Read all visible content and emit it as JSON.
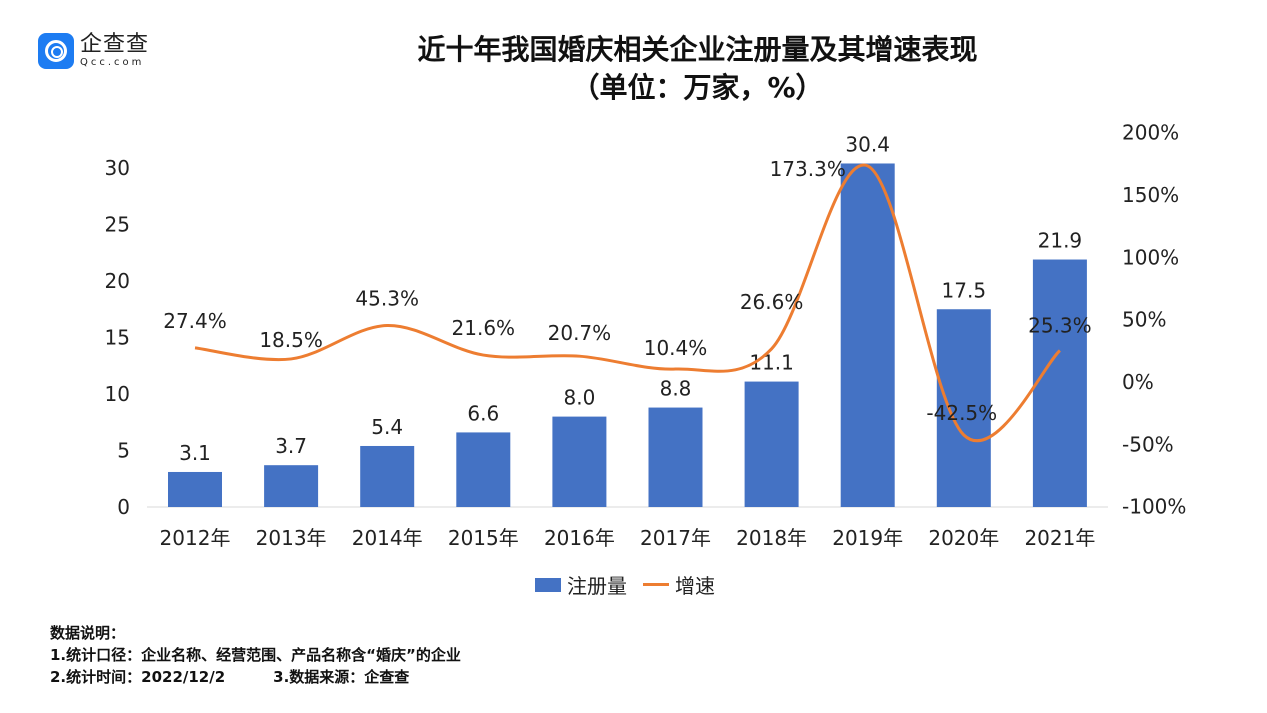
{
  "logo": {
    "cn": "企查查",
    "en": "Qcc.com"
  },
  "title": {
    "line1": "近十年我国婚庆相关企业注册量及其增速表现",
    "line2": "（单位：万家，%）"
  },
  "chart_data": {
    "type": "bar+line",
    "categories": [
      "2012年",
      "2013年",
      "2014年",
      "2015年",
      "2016年",
      "2017年",
      "2018年",
      "2019年",
      "2020年",
      "2021年"
    ],
    "series": [
      {
        "name": "注册量",
        "type": "bar",
        "axis": "left",
        "color": "#4472c4",
        "values": [
          3.1,
          3.7,
          5.4,
          6.6,
          8.0,
          8.8,
          11.1,
          30.4,
          17.5,
          21.9
        ],
        "labels": [
          "3.1",
          "3.7",
          "5.4",
          "6.6",
          "8.0",
          "8.8",
          "11.1",
          "30.4",
          "17.5",
          "21.9"
        ]
      },
      {
        "name": "增速",
        "type": "line",
        "axis": "right",
        "color": "#ed7d31",
        "smooth": true,
        "values": [
          27.4,
          18.5,
          45.3,
          21.6,
          20.7,
          10.4,
          26.6,
          173.3,
          -42.5,
          25.3
        ],
        "labels": [
          "27.4%",
          "18.5%",
          "45.3%",
          "21.6%",
          "20.7%",
          "10.4%",
          "26.6%",
          "173.3%",
          "-42.5%",
          "25.3%"
        ]
      }
    ],
    "left_axis": {
      "ticks": [
        "0",
        "5",
        "10",
        "15",
        "20",
        "25",
        "30"
      ],
      "range": [
        0,
        30
      ]
    },
    "right_axis": {
      "ticks": [
        "-100%",
        "-50%",
        "0%",
        "50%",
        "100%",
        "150%",
        "200%"
      ],
      "range": [
        -100,
        200
      ]
    },
    "grid": false,
    "legend": "bottom"
  },
  "notes": {
    "heading": "数据说明：",
    "line1": "1.统计口径：企业名称、经营范围、产品名称含“婚庆”的企业",
    "line2a": "2.统计时间：2022/12/2",
    "line2b": "3.数据来源：企查查"
  }
}
